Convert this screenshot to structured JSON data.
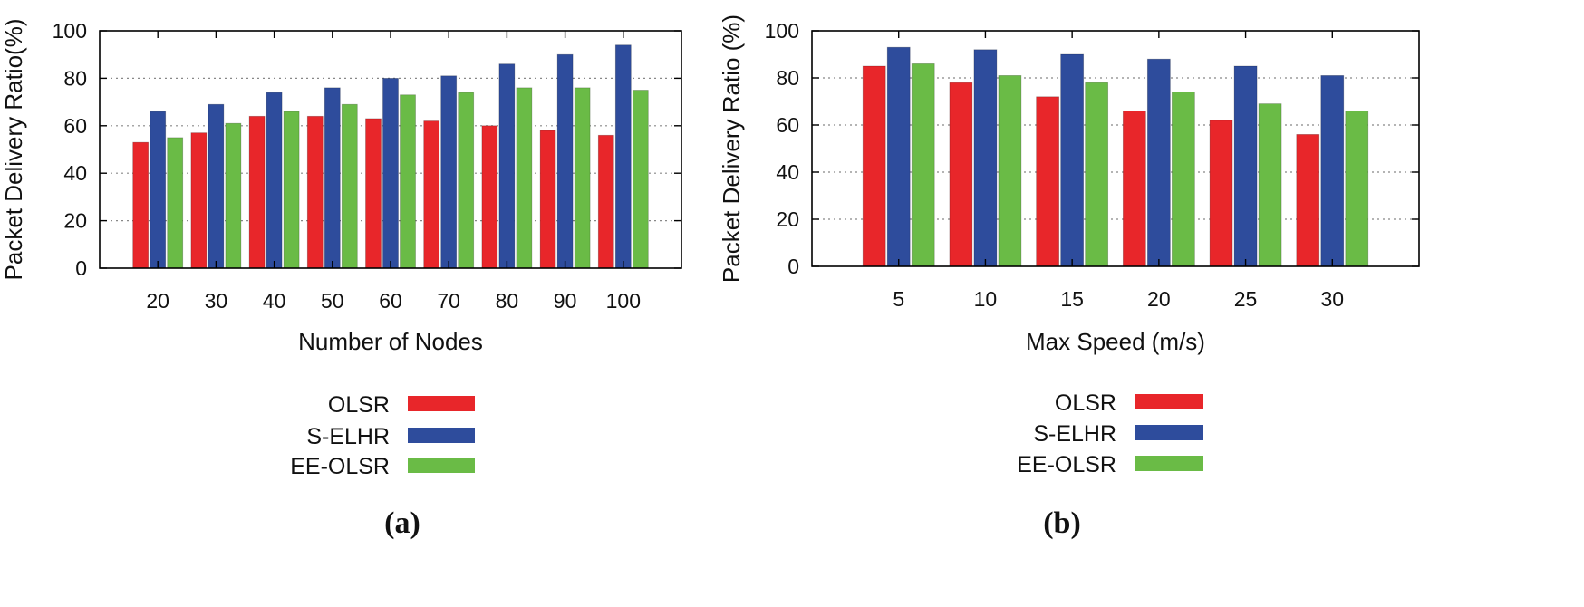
{
  "chart_data": [
    {
      "type": "bar",
      "caption": "(a)",
      "xlabel": "Number of Nodes",
      "ylabel": "Packet Delivery Ratio(%)",
      "ylim": [
        0,
        100
      ],
      "yticks": [
        0,
        20,
        40,
        60,
        80,
        100
      ],
      "grid": true,
      "legend_position": "bottom",
      "categories": [
        "20",
        "30",
        "40",
        "50",
        "60",
        "70",
        "80",
        "90",
        "100"
      ],
      "series": [
        {
          "name": "OLSR",
          "color": "#e8262a",
          "values": [
            53,
            57,
            64,
            64,
            63,
            62,
            60,
            58,
            56
          ]
        },
        {
          "name": "S-ELHR",
          "color": "#2e4c9c",
          "values": [
            66,
            69,
            74,
            76,
            80,
            81,
            86,
            90,
            94
          ]
        },
        {
          "name": "EE-OLSR",
          "color": "#6abb46",
          "values": [
            55,
            61,
            66,
            69,
            73,
            74,
            76,
            76,
            75
          ]
        }
      ]
    },
    {
      "type": "bar",
      "caption": "(b)",
      "xlabel": "Max Speed (m/s)",
      "ylabel": "Packet Delivery Ratio (%)",
      "ylim": [
        0,
        100
      ],
      "yticks": [
        0,
        20,
        40,
        60,
        80,
        100
      ],
      "grid": true,
      "legend_position": "bottom",
      "categories": [
        "5",
        "10",
        "15",
        "20",
        "25",
        "30"
      ],
      "series": [
        {
          "name": "OLSR",
          "color": "#e8262a",
          "values": [
            85,
            78,
            72,
            66,
            62,
            56
          ]
        },
        {
          "name": "S-ELHR",
          "color": "#2e4c9c",
          "values": [
            93,
            92,
            90,
            88,
            85,
            81
          ]
        },
        {
          "name": "EE-OLSR",
          "color": "#6abb46",
          "values": [
            86,
            81,
            78,
            74,
            69,
            66
          ]
        }
      ]
    }
  ]
}
